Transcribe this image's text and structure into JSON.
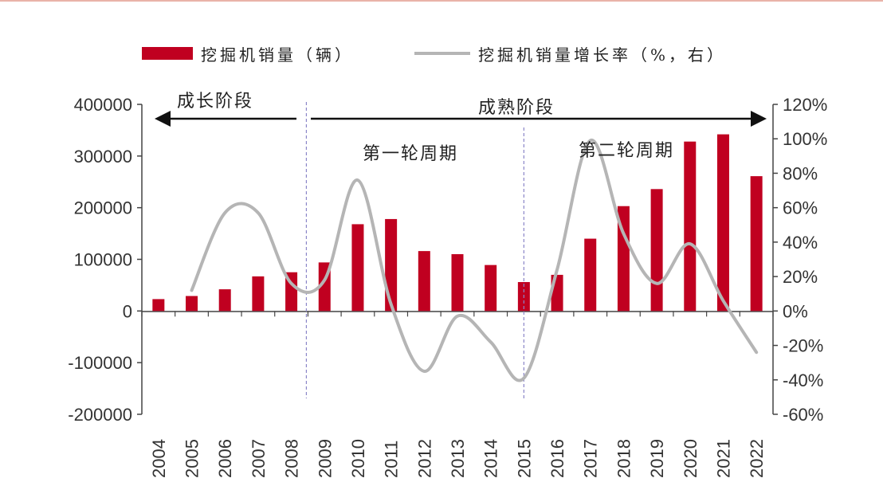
{
  "chart_data": {
    "type": "bar+line",
    "categories": [
      "2004",
      "2005",
      "2006",
      "2007",
      "2008",
      "2009",
      "2010",
      "2011",
      "2012",
      "2013",
      "2014",
      "2015",
      "2016",
      "2017",
      "2018",
      "2019",
      "2020",
      "2021",
      "2022"
    ],
    "series": [
      {
        "name": "挖掘机销量（辆）",
        "type": "bar",
        "axis": "left",
        "color": "#c00020",
        "values": [
          23000,
          29000,
          42000,
          67000,
          75000,
          94000,
          168000,
          178000,
          116000,
          110000,
          89000,
          56000,
          70000,
          140000,
          203000,
          236000,
          328000,
          342000,
          261000
        ]
      },
      {
        "name": "挖掘机销量增长率（%，右）",
        "type": "line",
        "axis": "right",
        "color": "#b5b5b5",
        "values": [
          null,
          12,
          57,
          57,
          16,
          18,
          76,
          4,
          -35,
          -3,
          -18,
          -39,
          24,
          99,
          45,
          16,
          39,
          6,
          -24
        ]
      }
    ],
    "left_axis": {
      "min": -200000,
      "max": 400000,
      "ticks": [
        -200000,
        -100000,
        0,
        100000,
        200000,
        300000,
        400000
      ],
      "tick_labels": [
        "-200000",
        "-100000",
        "0",
        "100000",
        "200000",
        "300000",
        "400000"
      ]
    },
    "right_axis": {
      "min": -60,
      "max": 120,
      "ticks": [
        -60,
        -40,
        -20,
        0,
        20,
        40,
        60,
        80,
        100,
        120
      ],
      "tick_labels": [
        "-60%",
        "-40%",
        "-20%",
        "0%",
        "20%",
        "40%",
        "60%",
        "80%",
        "100%",
        "120%"
      ]
    },
    "legend": {
      "bar_label": "挖掘机销量（辆）",
      "line_label": "挖掘机销量增长率（%，右）",
      "placement": "top"
    },
    "annotations": {
      "growth_stage": "成长阶段",
      "mature_stage": "成熟阶段",
      "cycle_one": "第一轮周期",
      "cycle_two": "第二轮周期"
    },
    "stage_boundary_after_year": "2008",
    "cycle_boundary_at_year": "2015"
  }
}
